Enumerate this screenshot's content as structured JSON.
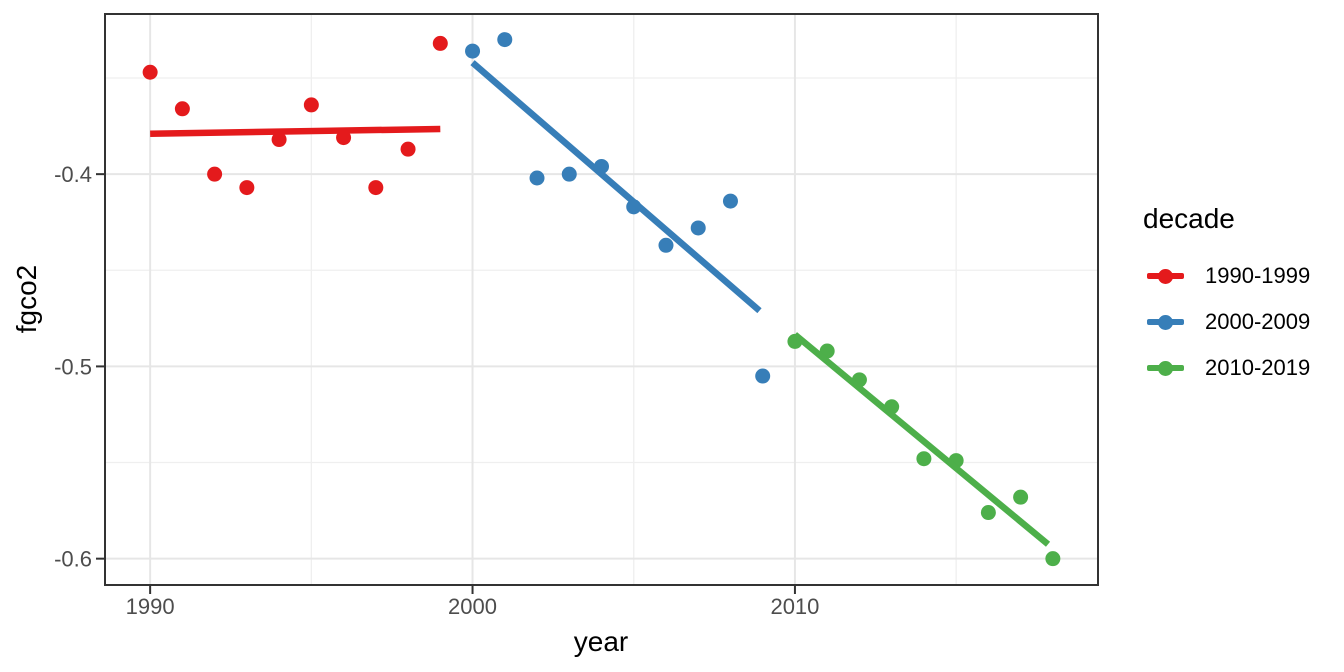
{
  "chart_data": {
    "type": "scatter",
    "title": "",
    "xlabel": "year",
    "ylabel": "fgco2",
    "xlim": [
      1988.6,
      2019.4
    ],
    "ylim": [
      -0.6137,
      -0.3167
    ],
    "grid": true,
    "x_major_ticks": [
      1990,
      2000,
      2010
    ],
    "x_tick_labels": [
      "1990",
      "2000",
      "2010"
    ],
    "x_minor_gridlines": [
      1995,
      2005,
      2015
    ],
    "y_major_ticks": [
      -0.4,
      -0.5,
      -0.6
    ],
    "y_tick_labels": [
      "-0.4",
      "-0.5",
      "-0.6"
    ],
    "y_minor_gridlines": [
      -0.35,
      -0.45,
      -0.55
    ],
    "legend": {
      "title": "decade",
      "position": "right"
    },
    "series": [
      {
        "name": "1990-1999",
        "color": "#E41A1C",
        "x": [
          1990,
          1991,
          1992,
          1993,
          1994,
          1995,
          1996,
          1997,
          1998,
          1999
        ],
        "y": [
          -0.347,
          -0.366,
          -0.4,
          -0.407,
          -0.382,
          -0.364,
          -0.381,
          -0.407,
          -0.387,
          -0.332
        ],
        "trend": {
          "x1": 1990.0,
          "y1": -0.379,
          "x2": 1999.0,
          "y2": -0.3765
        }
      },
      {
        "name": "2000-2009",
        "color": "#377EB8",
        "x": [
          2000,
          2001,
          2002,
          2003,
          2004,
          2005,
          2006,
          2007,
          2008,
          2009
        ],
        "y": [
          -0.336,
          -0.33,
          -0.402,
          -0.4,
          -0.396,
          -0.417,
          -0.437,
          -0.428,
          -0.414,
          -0.505
        ],
        "trend": {
          "x1": 2000.0,
          "y1": -0.342,
          "x2": 2008.9,
          "y2": -0.471
        }
      },
      {
        "name": "2010-2019",
        "color": "#4DAF4A",
        "x": [
          2010,
          2011,
          2012,
          2013,
          2014,
          2015,
          2016,
          2017,
          2018
        ],
        "y": [
          -0.487,
          -0.492,
          -0.507,
          -0.521,
          -0.548,
          -0.549,
          -0.576,
          -0.568,
          -0.6
        ],
        "trend": {
          "x1": 2010.0,
          "y1": -0.4835,
          "x2": 2017.85,
          "y2": -0.5925
        }
      }
    ]
  },
  "style": {
    "background": "#FFFFFF",
    "panel_background": "#FFFFFF",
    "panel_border": "#333333",
    "grid_major": "#E6E6E6",
    "grid_minor": "#EFEFEF",
    "tick_color": "#333333",
    "tick_label_color": "#4D4D4D",
    "title_color": "#000000"
  }
}
